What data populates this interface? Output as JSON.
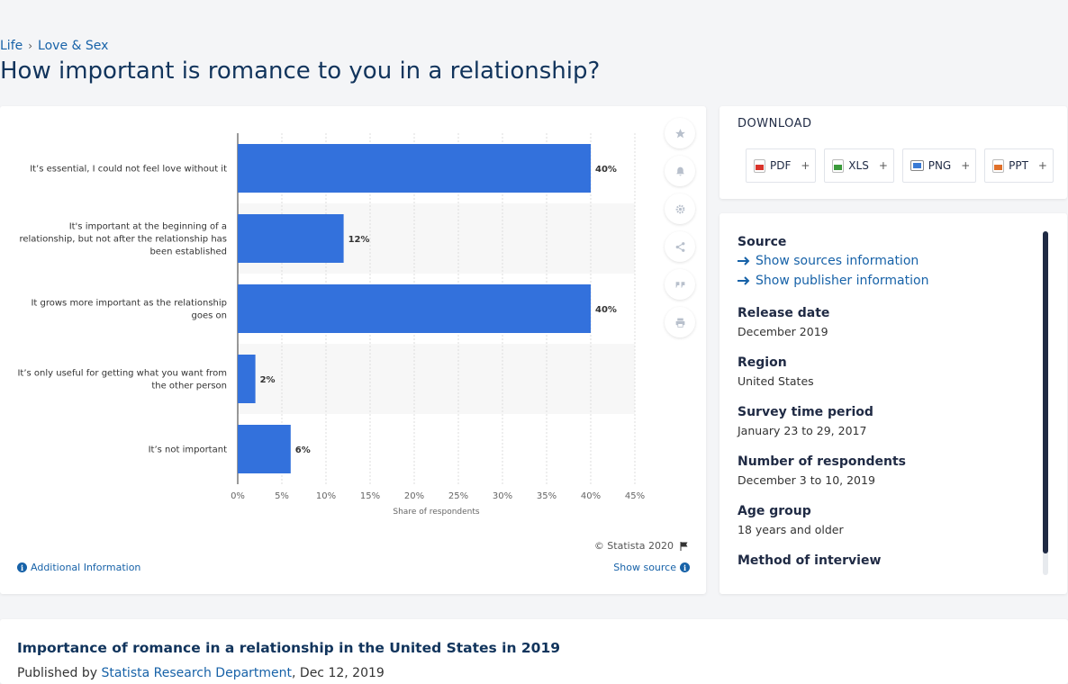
{
  "breadcrumb": {
    "items": [
      "Life",
      "Love & Sex"
    ]
  },
  "page": {
    "title": "How important is romance to you in a relationship?"
  },
  "chart_data": {
    "type": "bar",
    "orientation": "horizontal",
    "categories": [
      "It’s essential, I could not feel love without it",
      "It's important at the beginning of a relationship, but not after the relationship has been established",
      "It grows more important as the relationship goes on",
      "It’s only useful for getting what you want from the other person",
      "It’s not important"
    ],
    "category_lines": [
      [
        "It’s essential, I could not feel love without it"
      ],
      [
        "It's important at the beginning of a",
        "relationship, but not after the relationship has",
        "been established"
      ],
      [
        "It grows more important as the relationship",
        "goes on"
      ],
      [
        "It’s only useful for getting what you want from",
        "the other person"
      ],
      [
        "It’s not important"
      ]
    ],
    "values": [
      40,
      12,
      40,
      2,
      6
    ],
    "data_labels": [
      "40%",
      "12%",
      "40%",
      "2%",
      "6%"
    ],
    "xlabel": "Share of respondents",
    "xlim": [
      0,
      45
    ],
    "ticks": [
      0,
      5,
      10,
      15,
      20,
      25,
      30,
      35,
      40,
      45
    ],
    "tick_labels": [
      "0%",
      "5%",
      "10%",
      "15%",
      "20%",
      "25%",
      "30%",
      "35%",
      "40%",
      "45%"
    ],
    "grid": true,
    "bar_color": "#3371dc"
  },
  "chart_footer": {
    "copyright": "© Statista 2020",
    "additional_info": "Additional Information",
    "show_source": "Show source"
  },
  "download": {
    "title": "DOWNLOAD",
    "buttons": [
      {
        "label": "PDF",
        "icon": "pdf-file-icon",
        "color": "#d9342b"
      },
      {
        "label": "XLS",
        "icon": "xls-file-icon",
        "color": "#3b9a3b"
      },
      {
        "label": "PNG",
        "icon": "png-file-icon",
        "color": "#3a7bd5"
      },
      {
        "label": "PPT",
        "icon": "ppt-file-icon",
        "color": "#e0702a"
      }
    ],
    "plus": "+"
  },
  "meta": {
    "source_label": "Source",
    "show_sources": "Show sources information",
    "show_publisher": "Show publisher information",
    "release_date_label": "Release date",
    "release_date": "December 2019",
    "region_label": "Region",
    "region": "United States",
    "survey_period_label": "Survey time period",
    "survey_period": "January 23 to 29, 2017",
    "respondents_label": "Number of respondents",
    "respondents": "December 3 to 10, 2019",
    "age_group_label": "Age group",
    "age_group": "18 years and older",
    "method_label": "Method of interview"
  },
  "footer": {
    "title": "Importance of romance in a relationship in the United States in 2019",
    "published_by": "Published by",
    "publisher": "Statista Research Department",
    "date": ", Dec 12, 2019"
  }
}
